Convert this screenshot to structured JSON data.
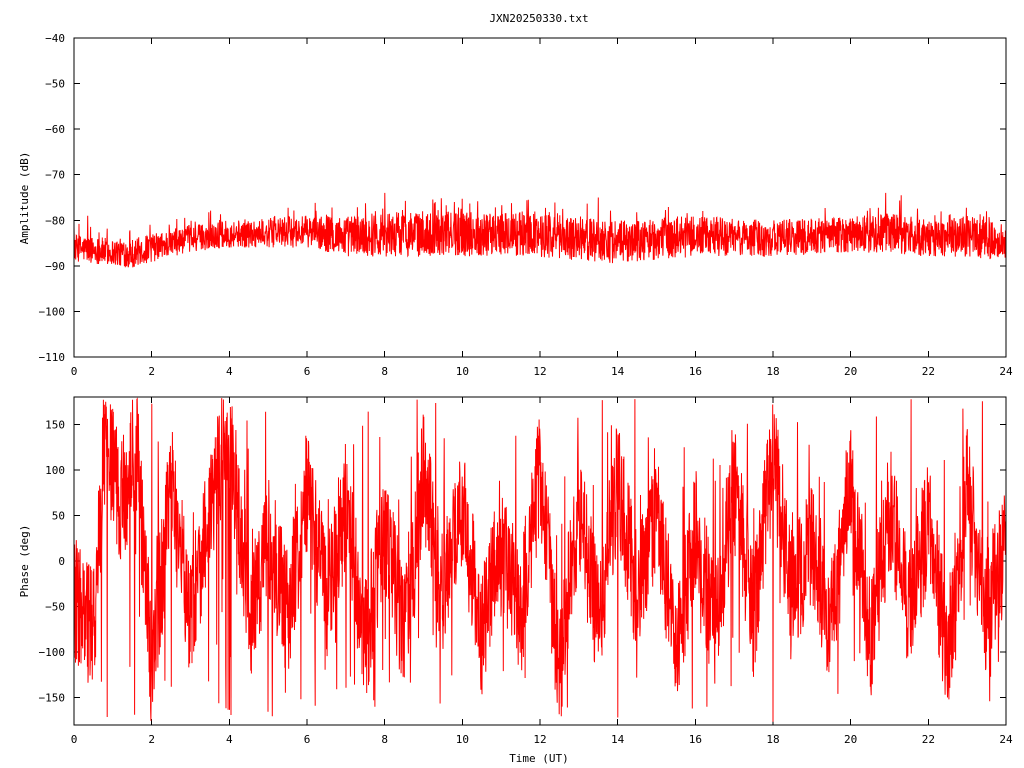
{
  "chart_data": [
    {
      "type": "line",
      "title": "JXN20250330.txt",
      "xlabel": "",
      "ylabel": "Amplitude (dB)",
      "xlim": [
        0,
        24
      ],
      "ylim": [
        -110,
        -40
      ],
      "xticks": [
        "0",
        "2",
        "4",
        "6",
        "8",
        "10",
        "12",
        "14",
        "16",
        "18",
        "20",
        "22",
        "24"
      ],
      "yticks": [
        "-40",
        "-50",
        "-60",
        "-70",
        "-80",
        "-90",
        "-100",
        "-110"
      ],
      "series": [
        {
          "color": "#ff0000",
          "envelope_lower": [
            {
              "x": 0,
              "y": -89
            },
            {
              "x": 1,
              "y": -90
            },
            {
              "x": 1.5,
              "y": -90.5
            },
            {
              "x": 2.5,
              "y": -88
            },
            {
              "x": 3,
              "y": -87
            },
            {
              "x": 4,
              "y": -86
            },
            {
              "x": 6,
              "y": -86
            },
            {
              "x": 7,
              "y": -88
            },
            {
              "x": 8,
              "y": -88
            },
            {
              "x": 10,
              "y": -88
            },
            {
              "x": 12,
              "y": -88
            },
            {
              "x": 13,
              "y": -89
            },
            {
              "x": 14,
              "y": -89.5
            },
            {
              "x": 16,
              "y": -88
            },
            {
              "x": 18,
              "y": -88
            },
            {
              "x": 20,
              "y": -87
            },
            {
              "x": 22,
              "y": -88
            },
            {
              "x": 23,
              "y": -88
            },
            {
              "x": 24,
              "y": -89
            }
          ],
          "envelope_upper": [
            {
              "x": 0,
              "y": -83
            },
            {
              "x": 1,
              "y": -84
            },
            {
              "x": 1.5,
              "y": -84
            },
            {
              "x": 2.5,
              "y": -82
            },
            {
              "x": 3,
              "y": -81
            },
            {
              "x": 4,
              "y": -80
            },
            {
              "x": 6,
              "y": -79
            },
            {
              "x": 7,
              "y": -79
            },
            {
              "x": 8,
              "y": -78
            },
            {
              "x": 10,
              "y": -78
            },
            {
              "x": 12,
              "y": -78
            },
            {
              "x": 13,
              "y": -79
            },
            {
              "x": 14,
              "y": -80
            },
            {
              "x": 16,
              "y": -79
            },
            {
              "x": 18,
              "y": -80
            },
            {
              "x": 20,
              "y": -79
            },
            {
              "x": 21,
              "y": -78
            },
            {
              "x": 22,
              "y": -80
            },
            {
              "x": 23,
              "y": -79
            },
            {
              "x": 24,
              "y": -81
            }
          ],
          "peaks": [
            {
              "x": 0.35,
              "y": -79
            },
            {
              "x": 8.0,
              "y": -74
            },
            {
              "x": 9.3,
              "y": -76
            },
            {
              "x": 11.7,
              "y": -75.5
            },
            {
              "x": 13.5,
              "y": -75
            },
            {
              "x": 20.9,
              "y": -74
            },
            {
              "x": 21.3,
              "y": -74.5
            },
            {
              "x": 23.5,
              "y": -78
            }
          ]
        }
      ]
    },
    {
      "type": "line",
      "title": "",
      "xlabel": "Time (UT)",
      "ylabel": "Phase (deg)",
      "xlim": [
        0,
        24
      ],
      "ylim": [
        -180,
        180
      ],
      "xticks": [
        "0",
        "2",
        "4",
        "6",
        "8",
        "10",
        "12",
        "14",
        "16",
        "18",
        "20",
        "22",
        "24"
      ],
      "yticks": [
        "150",
        "100",
        "50",
        "0",
        "-50",
        "-100",
        "-150"
      ],
      "series": [
        {
          "color": "#ff0000",
          "trend": [
            {
              "x": 0,
              "y": -40
            },
            {
              "x": 0.5,
              "y": -80
            },
            {
              "x": 0.8,
              "y": 140
            },
            {
              "x": 1.2,
              "y": 60
            },
            {
              "x": 1.6,
              "y": 130
            },
            {
              "x": 2,
              "y": -120
            },
            {
              "x": 2.5,
              "y": 80
            },
            {
              "x": 3,
              "y": -60
            },
            {
              "x": 3.5,
              "y": 60
            },
            {
              "x": 4,
              "y": 150
            },
            {
              "x": 4.5,
              "y": -70
            },
            {
              "x": 5,
              "y": 30
            },
            {
              "x": 5.5,
              "y": -60
            },
            {
              "x": 6,
              "y": 80
            },
            {
              "x": 6.5,
              "y": -40
            },
            {
              "x": 7,
              "y": 60
            },
            {
              "x": 7.5,
              "y": -90
            },
            {
              "x": 8,
              "y": 40
            },
            {
              "x": 8.5,
              "y": -80
            },
            {
              "x": 9,
              "y": 100
            },
            {
              "x": 9.5,
              "y": -40
            },
            {
              "x": 10,
              "y": 60
            },
            {
              "x": 10.5,
              "y": -80
            },
            {
              "x": 11,
              "y": 20
            },
            {
              "x": 11.5,
              "y": -60
            },
            {
              "x": 12,
              "y": 100
            },
            {
              "x": 12.5,
              "y": -120
            },
            {
              "x": 13,
              "y": 60
            },
            {
              "x": 13.5,
              "y": -70
            },
            {
              "x": 14,
              "y": 90
            },
            {
              "x": 14.5,
              "y": -40
            },
            {
              "x": 15,
              "y": 60
            },
            {
              "x": 15.5,
              "y": -110
            },
            {
              "x": 16,
              "y": 40
            },
            {
              "x": 16.5,
              "y": -80
            },
            {
              "x": 17,
              "y": 80
            },
            {
              "x": 17.5,
              "y": -60
            },
            {
              "x": 18,
              "y": 120
            },
            {
              "x": 18.5,
              "y": -40
            },
            {
              "x": 19,
              "y": 20
            },
            {
              "x": 19.5,
              "y": -70
            },
            {
              "x": 20,
              "y": 90
            },
            {
              "x": 20.5,
              "y": -90
            },
            {
              "x": 21,
              "y": 60
            },
            {
              "x": 21.5,
              "y": -50
            },
            {
              "x": 22,
              "y": 40
            },
            {
              "x": 22.5,
              "y": -100
            },
            {
              "x": 23,
              "y": 80
            },
            {
              "x": 23.5,
              "y": -60
            },
            {
              "x": 24,
              "y": 20
            }
          ],
          "spread_deg": 70
        }
      ]
    }
  ]
}
